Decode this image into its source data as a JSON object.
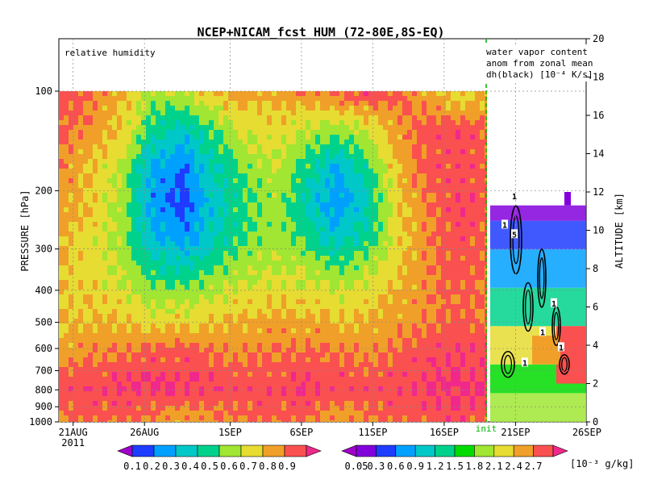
{
  "chart_data": {
    "type": "heatmap",
    "title": "NCEP+NICAM_fcst HUM (72-80E,8S-EQ)",
    "left_panel": {
      "label": "relative humidity",
      "ylabel": "PRESSURE [hPa]",
      "y_ticks": [
        "100",
        "200",
        "300",
        "400",
        "500",
        "600",
        "700",
        "800",
        "900",
        "1000"
      ],
      "y_tick_values": [
        100,
        200,
        300,
        400,
        500,
        600,
        700,
        800,
        900,
        1000
      ],
      "ylim": [
        1000,
        100
      ],
      "y_scale": "log",
      "x_ticks": [
        "21AUG",
        "26AUG",
        "1SEP",
        "6SEP",
        "11SEP",
        "16SEP"
      ],
      "x_tick_values": [
        "2011-08-21",
        "2011-08-26",
        "2011-09-01",
        "2011-09-06",
        "2011-09-11",
        "2011-09-16"
      ],
      "year_label": "2011",
      "xlim": [
        "2011-08-20",
        "2011-09-19"
      ]
    },
    "right_panel": {
      "label_lines": [
        "water vapor content",
        "anom from zonal mean",
        "dh(black) [10⁻⁴ K/s]"
      ],
      "ylabel": "ALTITUDE [km]",
      "y_ticks": [
        "0",
        "2",
        "4",
        "6",
        "8",
        "10",
        "12",
        "14",
        "16",
        "18",
        "20"
      ],
      "y_tick_values": [
        0,
        2,
        4,
        6,
        8,
        10,
        12,
        14,
        16,
        18,
        20
      ],
      "ylim": [
        0,
        20
      ],
      "x_ticks": [
        "21SEP",
        "26SEP"
      ],
      "x_tick_values": [
        "2011-09-21",
        "2011-09-26"
      ],
      "init_label": "init",
      "contour_labels": [
        "1",
        "1",
        "5",
        "1",
        "1",
        "1",
        "1"
      ]
    },
    "colorbar_left": {
      "labels": [
        "0.1",
        "0.2",
        "0.3",
        "0.4",
        "0.5",
        "0.6",
        "0.7",
        "0.8",
        "0.9"
      ],
      "colors": [
        "#a000c8",
        "#1e3cff",
        "#00a0ff",
        "#00c8c8",
        "#00d28c",
        "#a0e632",
        "#e6dc32",
        "#f0a028",
        "#fa5050",
        "#f0288c"
      ]
    },
    "colorbar_right": {
      "labels": [
        "0.05",
        "0.3",
        "0.6",
        "0.9",
        "1.2",
        "1.5",
        "1.8",
        "2.1",
        "2.4",
        "2.7"
      ],
      "unit": "[10⁻³ g/kg]",
      "colors": [
        "#a000c8",
        "#8200dc",
        "#1e3cff",
        "#00a0ff",
        "#00c8c8",
        "#00d28c",
        "#00dc00",
        "#a0e632",
        "#e6dc32",
        "#f0a028",
        "#fa5050",
        "#f0288c"
      ]
    },
    "grid": true,
    "rh_field": [
      [
        0.85,
        0.8,
        0.72,
        0.55,
        0.6,
        0.7,
        0.75,
        0.72,
        0.78,
        0.82,
        0.86,
        0.85,
        0.72,
        0.65,
        0.7
      ],
      [
        0.82,
        0.76,
        0.68,
        0.45,
        0.35,
        0.5,
        0.62,
        0.66,
        0.6,
        0.55,
        0.6,
        0.75,
        0.85,
        0.88,
        0.8
      ],
      [
        0.78,
        0.7,
        0.58,
        0.28,
        0.2,
        0.4,
        0.52,
        0.6,
        0.45,
        0.3,
        0.45,
        0.72,
        0.84,
        0.86,
        0.82
      ],
      [
        0.75,
        0.68,
        0.55,
        0.25,
        0.15,
        0.35,
        0.48,
        0.55,
        0.4,
        0.22,
        0.38,
        0.68,
        0.8,
        0.88,
        0.84
      ],
      [
        0.72,
        0.65,
        0.55,
        0.32,
        0.25,
        0.38,
        0.5,
        0.56,
        0.48,
        0.35,
        0.45,
        0.66,
        0.78,
        0.86,
        0.82
      ],
      [
        0.7,
        0.66,
        0.6,
        0.48,
        0.45,
        0.52,
        0.58,
        0.62,
        0.6,
        0.55,
        0.6,
        0.7,
        0.78,
        0.84,
        0.8
      ],
      [
        0.68,
        0.7,
        0.68,
        0.62,
        0.64,
        0.66,
        0.7,
        0.72,
        0.7,
        0.68,
        0.7,
        0.74,
        0.78,
        0.82,
        0.8
      ],
      [
        0.74,
        0.78,
        0.8,
        0.82,
        0.84,
        0.8,
        0.78,
        0.8,
        0.82,
        0.8,
        0.78,
        0.82,
        0.86,
        0.88,
        0.86
      ],
      [
        0.86,
        0.88,
        0.9,
        0.92,
        0.9,
        0.88,
        0.86,
        0.88,
        0.9,
        0.88,
        0.86,
        0.88,
        0.9,
        0.92,
        0.9
      ],
      [
        0.78,
        0.82,
        0.8,
        0.76,
        0.72,
        0.76,
        0.8,
        0.82,
        0.78,
        0.74,
        0.78,
        0.82,
        0.84,
        0.86,
        0.82
      ]
    ]
  }
}
